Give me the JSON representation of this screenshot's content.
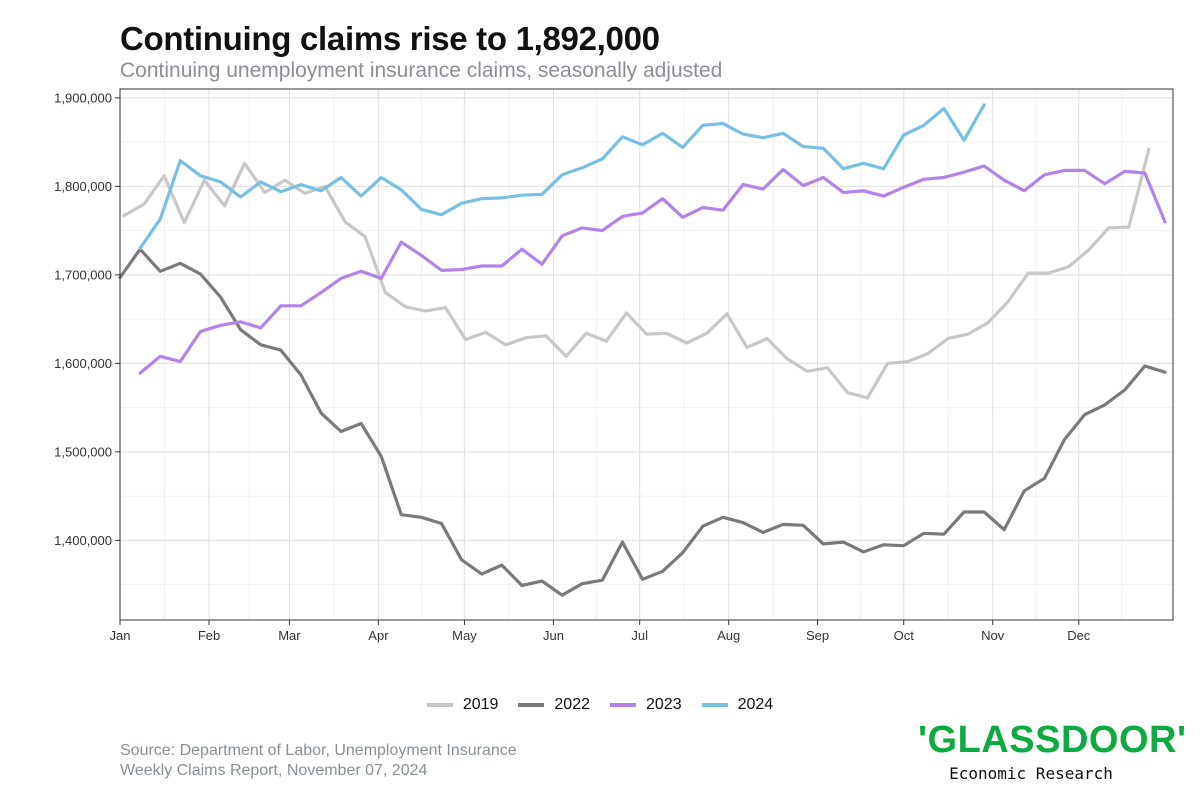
{
  "header": {
    "title": "Continuing claims rise to 1,892,000",
    "subtitle": "Continuing unemployment insurance claims, seasonally adjusted"
  },
  "source": {
    "line1": "Source: Department of Labor, Unemployment Insurance",
    "line2": "Weekly Claims Report, November 07, 2024"
  },
  "logo": {
    "wordmark": "'GLASSDOOR'",
    "tagline": "Economic Research",
    "color": "#0caa41"
  },
  "chart_data": {
    "type": "line",
    "title": "Continuing claims rise to 1,892,000",
    "subtitle": "Continuing unemployment insurance claims, seasonally adjusted",
    "x_unit": "week of year",
    "x_ticks": [
      {
        "label": "Jan",
        "x": 1
      },
      {
        "label": "Feb",
        "x": 5.43
      },
      {
        "label": "Mar",
        "x": 9.43
      },
      {
        "label": "Apr",
        "x": 13.86
      },
      {
        "label": "May",
        "x": 18.14
      },
      {
        "label": "Jun",
        "x": 22.57
      },
      {
        "label": "Jul",
        "x": 26.86
      },
      {
        "label": "Aug",
        "x": 31.29
      },
      {
        "label": "Sep",
        "x": 35.71
      },
      {
        "label": "Oct",
        "x": 40
      },
      {
        "label": "Nov",
        "x": 44.43
      },
      {
        "label": "Dec",
        "x": 48.71
      }
    ],
    "xlim": [
      1,
      53.4
    ],
    "ylim": [
      1310000,
      1910000
    ],
    "y_ticks": [
      1400000,
      1500000,
      1600000,
      1700000,
      1800000,
      1900000
    ],
    "y_tick_labels": [
      "1,400,000",
      "1,500,000",
      "1,600,000",
      "1,700,000",
      "1,800,000",
      "1,900,000"
    ],
    "grid": true,
    "legend_position": "bottom",
    "series": [
      {
        "name": "2019",
        "color": "#c8c8c8",
        "x_start": 1.2,
        "values": [
          1767000,
          1780000,
          1812000,
          1759000,
          1807000,
          1778000,
          1826000,
          1793000,
          1807000,
          1792000,
          1800000,
          1760000,
          1743000,
          1680000,
          1664000,
          1659000,
          1663000,
          1627000,
          1635000,
          1621000,
          1629000,
          1631000,
          1608000,
          1634000,
          1625000,
          1657000,
          1633000,
          1634000,
          1623000,
          1634000,
          1656000,
          1618000,
          1628000,
          1605000,
          1591000,
          1595000,
          1567000,
          1561000,
          1600000,
          1602000,
          1611000,
          1628000,
          1633000,
          1646000,
          1670000,
          1702000,
          1702000,
          1709000,
          1728000,
          1753000,
          1754000,
          1842000
        ]
      },
      {
        "name": "2022",
        "color": "#7a7a7a",
        "x_start": 1,
        "values": [
          1697000,
          1729000,
          1704000,
          1713000,
          1701000,
          1675000,
          1638000,
          1621000,
          1615000,
          1587000,
          1544000,
          1523000,
          1532000,
          1495000,
          1429000,
          1426000,
          1419000,
          1378000,
          1362000,
          1372000,
          1349000,
          1354000,
          1338000,
          1351000,
          1355000,
          1398000,
          1356000,
          1365000,
          1386000,
          1416000,
          1426000,
          1420000,
          1409000,
          1418000,
          1417000,
          1396000,
          1398000,
          1387000,
          1395000,
          1394000,
          1408000,
          1407000,
          1432000,
          1432000,
          1412000,
          1456000,
          1470000,
          1514000,
          1542000,
          1553000,
          1570000,
          1597000,
          1590000
        ]
      },
      {
        "name": "2023",
        "color": "#b483ea",
        "x_start": 2,
        "values": [
          1589000,
          1608000,
          1602000,
          1636000,
          1643000,
          1647000,
          1640000,
          1665000,
          1665000,
          1680000,
          1696000,
          1704000,
          1696000,
          1737000,
          1722000,
          1705000,
          1706000,
          1710000,
          1710000,
          1729000,
          1712000,
          1744000,
          1753000,
          1750000,
          1766000,
          1770000,
          1786000,
          1765000,
          1776000,
          1773000,
          1802000,
          1797000,
          1819000,
          1801000,
          1810000,
          1793000,
          1795000,
          1789000,
          1799000,
          1808000,
          1810000,
          1816000,
          1823000,
          1807000,
          1795000,
          1813000,
          1818000,
          1818000,
          1803000,
          1817000,
          1815000,
          1760000
        ]
      },
      {
        "name": "2024",
        "color": "#7abfe3",
        "x_start": 2,
        "values": [
          1730000,
          1763000,
          1829000,
          1812000,
          1805000,
          1788000,
          1805000,
          1794000,
          1802000,
          1795000,
          1810000,
          1789000,
          1810000,
          1796000,
          1774000,
          1768000,
          1781000,
          1786000,
          1787000,
          1790000,
          1791000,
          1813000,
          1821000,
          1831000,
          1856000,
          1847000,
          1860000,
          1844000,
          1869000,
          1871000,
          1859000,
          1855000,
          1860000,
          1845000,
          1843000,
          1820000,
          1826000,
          1820000,
          1858000,
          1869000,
          1888000,
          1852000,
          1892000
        ]
      }
    ]
  }
}
